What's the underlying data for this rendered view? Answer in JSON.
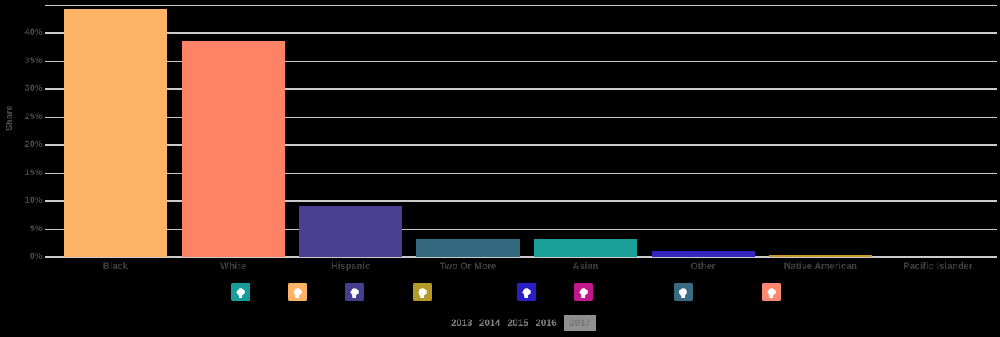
{
  "chart_data": {
    "type": "bar",
    "title": "",
    "ylabel": "Share",
    "categories": [
      "Black",
      "White",
      "Hispanic",
      "Two Or More",
      "Asian",
      "Other",
      "Native American",
      "Pacific Islander"
    ],
    "values": [
      44.4,
      38.6,
      9.2,
      3.3,
      3.3,
      1.1,
      0.5,
      0
    ],
    "bar_colors": [
      "#fdb366",
      "#fd8266",
      "#4a3f92",
      "#35697f",
      "#1ba097",
      "#3425bd",
      "#c49b2a",
      "#3f3f3f"
    ],
    "ylim": [
      0,
      45
    ],
    "ytick_step": 5,
    "ytick_suffix": "%",
    "labeled_tick_max": 40,
    "grid": true,
    "gridline_color": "#cbcbcb",
    "legend_position": "none",
    "background": "#000000"
  },
  "person_buttons": [
    {
      "name": "person-icon-teal",
      "color": "#189b9b"
    },
    {
      "name": "person-icon-orange",
      "color": "#fdb366"
    },
    {
      "name": "person-icon-indigo",
      "color": "#463d8f"
    },
    {
      "name": "person-icon-gold",
      "color": "#b5992b"
    },
    {
      "name": "person-icon-blue",
      "color": "#2a1fc4"
    },
    {
      "name": "person-icon-magenta",
      "color": "#c2188c"
    },
    {
      "name": "person-icon-steel",
      "color": "#386a82"
    },
    {
      "name": "person-icon-salmon",
      "color": "#fd8a70"
    }
  ],
  "year_selector": {
    "years": [
      "2013",
      "2014",
      "2015",
      "2016"
    ],
    "selected": "2017",
    "selected_bg": "#8f8f8f"
  }
}
